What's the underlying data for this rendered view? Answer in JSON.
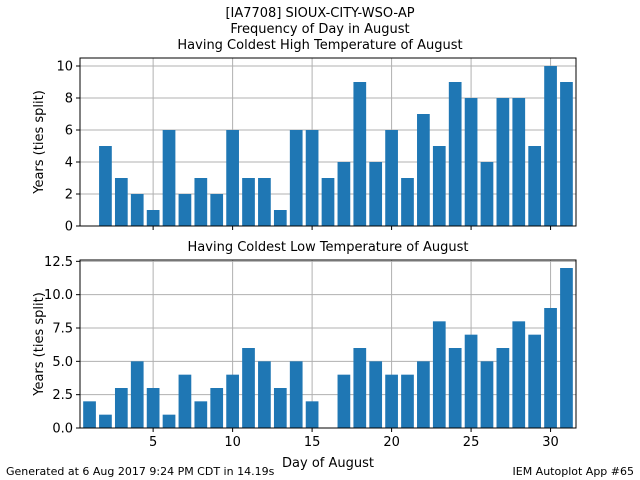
{
  "title_lines": [
    "[IA7708] SIOUX-CITY-WSO-AP",
    "Frequency of Day in August",
    "Having Coldest High Temperature of August"
  ],
  "footer": {
    "left": "Generated at 6 Aug 2017 9:24 PM CDT in 14.19s",
    "right": "IEM Autoplot App #65"
  },
  "colors": {
    "bar": "#1f77b4",
    "grid": "#b0b0b0"
  },
  "chart_data": [
    {
      "type": "bar",
      "title": "",
      "xlabel": "",
      "ylabel": "Years (ties split)",
      "x": [
        1,
        2,
        3,
        4,
        5,
        6,
        7,
        8,
        9,
        10,
        11,
        12,
        13,
        14,
        15,
        16,
        17,
        18,
        19,
        20,
        21,
        22,
        23,
        24,
        25,
        26,
        27,
        28,
        29,
        30,
        31
      ],
      "values": [
        0,
        5,
        3,
        2,
        1,
        6,
        2,
        3,
        2,
        6,
        3,
        3,
        1,
        6,
        6,
        3,
        4,
        9,
        4,
        6,
        3,
        7,
        5,
        9,
        8,
        4,
        8,
        8,
        5,
        10,
        9
      ],
      "xlim": [
        0.4,
        31.6
      ],
      "ylim": [
        0,
        10.5
      ],
      "xticks": [
        5,
        10,
        15,
        20,
        25,
        30
      ],
      "xtick_labels_shown": false,
      "yticks": [
        0,
        2,
        4,
        6,
        8,
        10
      ],
      "ytick_labels": [
        "0",
        "2",
        "4",
        "6",
        "8",
        "10"
      ],
      "grid": true
    },
    {
      "type": "bar",
      "title": "Having Coldest Low Temperature of August",
      "xlabel": "Day of August",
      "ylabel": "Years (ties split)",
      "x": [
        1,
        2,
        3,
        4,
        5,
        6,
        7,
        8,
        9,
        10,
        11,
        12,
        13,
        14,
        15,
        16,
        17,
        18,
        19,
        20,
        21,
        22,
        23,
        24,
        25,
        26,
        27,
        28,
        29,
        30,
        31
      ],
      "values": [
        2,
        1,
        3,
        5,
        3,
        1,
        4,
        2,
        3,
        4,
        6,
        5,
        3,
        5,
        2,
        0,
        4,
        6,
        5,
        4,
        4,
        5,
        8,
        6,
        7,
        5,
        6,
        8,
        7,
        9,
        12
      ],
      "xlim": [
        0.4,
        31.6
      ],
      "ylim": [
        0,
        12.6
      ],
      "xticks": [
        5,
        10,
        15,
        20,
        25,
        30
      ],
      "xtick_labels": [
        "5",
        "10",
        "15",
        "20",
        "25",
        "30"
      ],
      "xtick_labels_shown": true,
      "yticks": [
        0,
        2.5,
        5,
        7.5,
        10,
        12.5
      ],
      "ytick_labels": [
        "0.0",
        "2.5",
        "5.0",
        "7.5",
        "10.0",
        "12.5"
      ],
      "grid": true
    }
  ]
}
